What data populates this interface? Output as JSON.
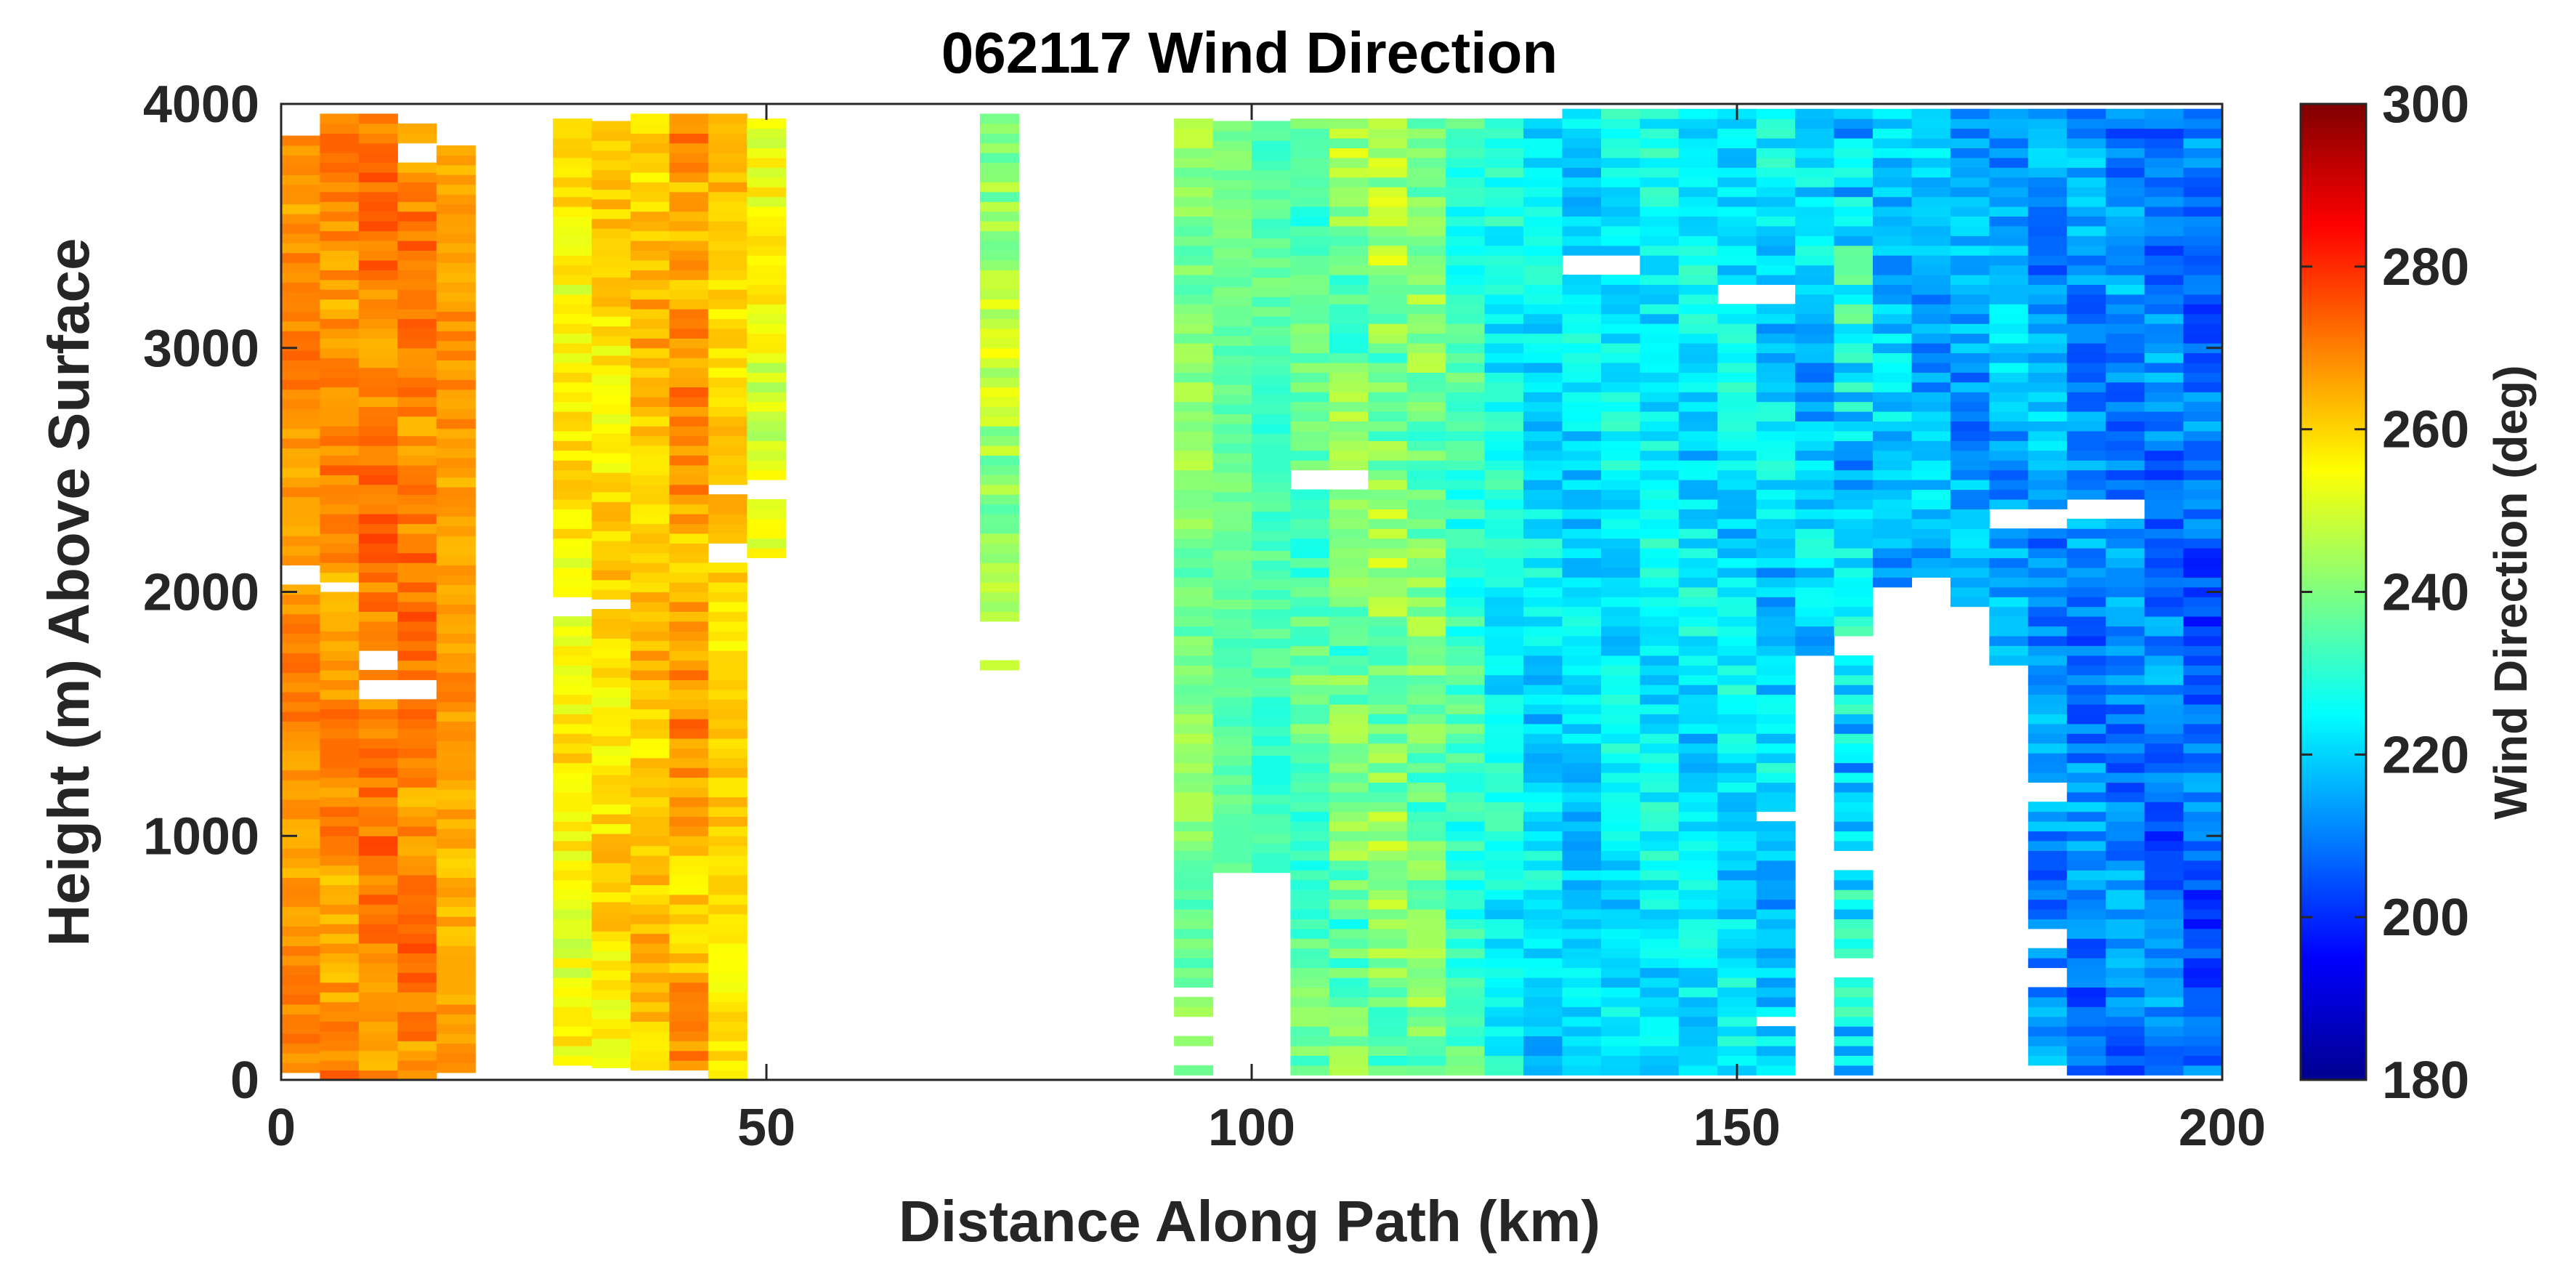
{
  "chart_data": {
    "type": "heatmap",
    "title": "062117 Wind Direction",
    "xlabel": "Distance Along Path (km)",
    "ylabel": "Height (m) Above Surface",
    "xlim": [
      0,
      200
    ],
    "ylim": [
      0,
      4000
    ],
    "xticks": [
      "0",
      "50",
      "100",
      "150",
      "200"
    ],
    "yticks": [
      "0",
      "1000",
      "2000",
      "3000",
      "4000"
    ],
    "colorbar": {
      "label": "Wind Direction (deg)",
      "range": [
        180,
        300
      ],
      "colormap": "jet",
      "ticks": [
        "180",
        "200",
        "220",
        "240",
        "260",
        "280",
        "300"
      ]
    },
    "grid": false,
    "column_width_km": 4,
    "columns": [
      {
        "x": 0,
        "top": 3870,
        "bottom": 30,
        "low": 262,
        "high": 274,
        "gaps": [
          [
            2030,
            2120
          ]
        ]
      },
      {
        "x": 4,
        "top": 3950,
        "bottom": 0,
        "low": 260,
        "high": 276,
        "gaps": [
          [
            2000,
            2040
          ]
        ]
      },
      {
        "x": 8,
        "top": 3950,
        "bottom": 0,
        "low": 262,
        "high": 278,
        "gaps": [
          [
            1690,
            1760
          ],
          [
            1580,
            1640
          ]
        ]
      },
      {
        "x": 12,
        "top": 3920,
        "bottom": 0,
        "low": 262,
        "high": 278,
        "gaps": [
          [
            3780,
            3850
          ],
          [
            1580,
            1640
          ]
        ]
      },
      {
        "x": 16,
        "top": 3800,
        "bottom": 30,
        "low": 260,
        "high": 272,
        "gaps": []
      },
      {
        "x": 28,
        "top": 3930,
        "bottom": 60,
        "low": 248,
        "high": 264,
        "gaps": [
          [
            1920,
            1980
          ]
        ]
      },
      {
        "x": 32,
        "top": 3930,
        "bottom": 50,
        "low": 250,
        "high": 266,
        "gaps": [
          [
            1920,
            1980
          ]
        ]
      },
      {
        "x": 36,
        "top": 3930,
        "bottom": 40,
        "low": 254,
        "high": 270,
        "gaps": []
      },
      {
        "x": 40,
        "top": 3930,
        "bottom": 40,
        "low": 256,
        "high": 276,
        "gaps": []
      },
      {
        "x": 44,
        "top": 3930,
        "bottom": 0,
        "low": 254,
        "high": 266,
        "gaps": [
          [
            2400,
            2450
          ],
          [
            2120,
            2200
          ]
        ]
      },
      {
        "x": 48,
        "top": 3930,
        "bottom": 2140,
        "low": 244,
        "high": 262,
        "gaps": [
          [
            2400,
            2450
          ]
        ]
      },
      {
        "x": 72,
        "top": 3950,
        "bottom": 1680,
        "low": 234,
        "high": 256,
        "gaps": [
          [
            1740,
            1880
          ]
        ]
      },
      {
        "x": 92,
        "top": 3940,
        "bottom": 20,
        "low": 232,
        "high": 248,
        "gaps": [
          [
            330,
            380
          ],
          [
            200,
            260
          ],
          [
            60,
            120
          ]
        ]
      },
      {
        "x": 96,
        "top": 3910,
        "bottom": 850,
        "low": 232,
        "high": 242,
        "gaps": []
      },
      {
        "x": 100,
        "top": 3910,
        "bottom": 850,
        "low": 228,
        "high": 240,
        "gaps": []
      },
      {
        "x": 104,
        "top": 3910,
        "bottom": 20,
        "low": 226,
        "high": 244,
        "gaps": [
          [
            2440,
            2500
          ]
        ]
      },
      {
        "x": 108,
        "top": 3910,
        "bottom": 20,
        "low": 226,
        "high": 252,
        "gaps": [
          [
            2440,
            2500
          ]
        ]
      },
      {
        "x": 112,
        "top": 3910,
        "bottom": 20,
        "low": 228,
        "high": 254,
        "gaps": []
      },
      {
        "x": 116,
        "top": 3920,
        "bottom": 20,
        "low": 228,
        "high": 250,
        "gaps": []
      },
      {
        "x": 120,
        "top": 3930,
        "bottom": 20,
        "low": 222,
        "high": 242,
        "gaps": []
      },
      {
        "x": 124,
        "top": 3930,
        "bottom": 20,
        "low": 216,
        "high": 236,
        "gaps": []
      },
      {
        "x": 128,
        "top": 3940,
        "bottom": 20,
        "low": 212,
        "high": 232,
        "gaps": []
      },
      {
        "x": 132,
        "top": 3950,
        "bottom": 20,
        "low": 212,
        "high": 230,
        "gaps": [
          [
            3310,
            3380
          ]
        ]
      },
      {
        "x": 136,
        "top": 3950,
        "bottom": 20,
        "low": 214,
        "high": 232,
        "gaps": [
          [
            3310,
            3380
          ]
        ]
      },
      {
        "x": 140,
        "top": 3950,
        "bottom": 20,
        "low": 214,
        "high": 234,
        "gaps": []
      },
      {
        "x": 144,
        "top": 3950,
        "bottom": 20,
        "low": 212,
        "high": 232,
        "gaps": []
      },
      {
        "x": 148,
        "top": 3950,
        "bottom": 20,
        "low": 212,
        "high": 232,
        "gaps": [
          [
            3200,
            3260
          ]
        ]
      },
      {
        "x": 152,
        "top": 3950,
        "bottom": 20,
        "low": 208,
        "high": 232,
        "gaps": [
          [
            3200,
            3260
          ],
          [
            1060,
            1110
          ],
          [
            220,
            270
          ]
        ]
      },
      {
        "x": 156,
        "top": 3960,
        "bottom": 20,
        "low": 206,
        "high": 230,
        "gaps": [
          [
            0,
            1730
          ]
        ]
      },
      {
        "x": 160,
        "top": 3960,
        "bottom": 20,
        "low": 206,
        "high": 240,
        "gaps": [
          [
            1730,
            1820
          ],
          [
            880,
            920
          ],
          [
            420,
            480
          ]
        ]
      },
      {
        "x": 164,
        "top": 3960,
        "bottom": 20,
        "low": 206,
        "high": 228,
        "gaps": [
          [
            0,
            2020
          ]
        ]
      },
      {
        "x": 168,
        "top": 3960,
        "bottom": 20,
        "low": 204,
        "high": 226,
        "gaps": [
          [
            0,
            2040
          ]
        ]
      },
      {
        "x": 172,
        "top": 3960,
        "bottom": 20,
        "low": 204,
        "high": 226,
        "gaps": [
          [
            0,
            1940
          ]
        ]
      },
      {
        "x": 176,
        "top": 3960,
        "bottom": 20,
        "low": 204,
        "high": 226,
        "gaps": [
          [
            2280,
            2330
          ],
          [
            0,
            1680
          ]
        ]
      },
      {
        "x": 180,
        "top": 3960,
        "bottom": 20,
        "low": 202,
        "high": 224,
        "gaps": [
          [
            2280,
            2330
          ],
          [
            1160,
            1210
          ],
          [
            560,
            610
          ],
          [
            380,
            440
          ],
          [
            0,
            40
          ]
        ]
      },
      {
        "x": 184,
        "top": 3960,
        "bottom": 20,
        "low": 200,
        "high": 222,
        "gaps": [
          [
            2300,
            2370
          ]
        ]
      },
      {
        "x": 188,
        "top": 3960,
        "bottom": 20,
        "low": 200,
        "high": 222,
        "gaps": [
          [
            2300,
            2370
          ]
        ]
      },
      {
        "x": 192,
        "top": 3960,
        "bottom": 20,
        "low": 198,
        "high": 220,
        "gaps": []
      },
      {
        "x": 196,
        "top": 3960,
        "bottom": 20,
        "low": 196,
        "high": 218,
        "gaps": []
      }
    ]
  }
}
